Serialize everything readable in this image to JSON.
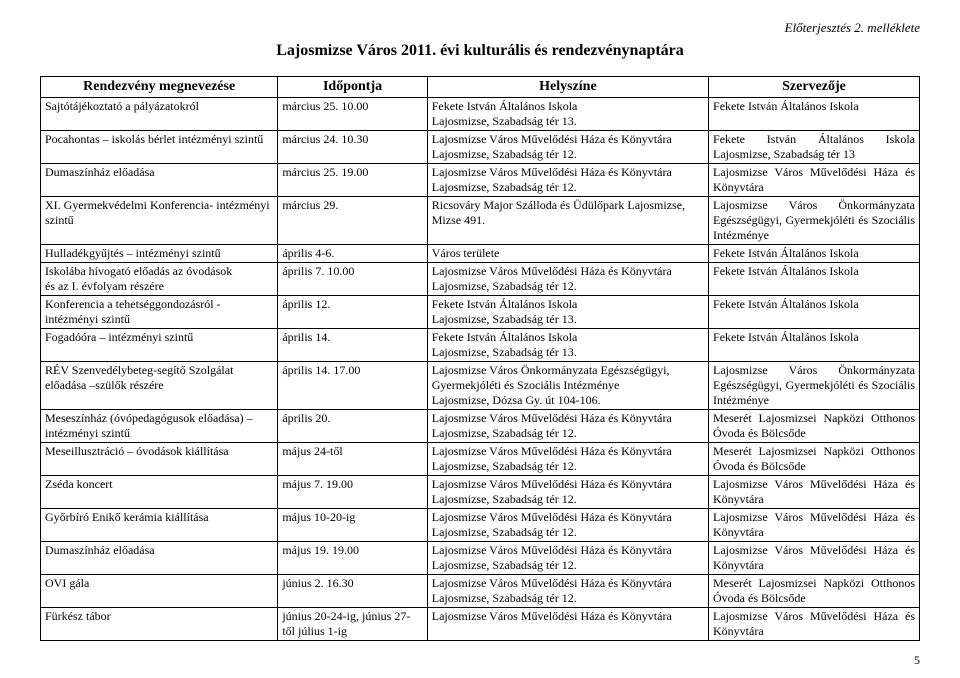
{
  "attachment_note": "Előterjesztés 2. melléklete",
  "title": "Lajosmizse Város 2011. évi kulturális és rendezvénynaptára",
  "page_number": "5",
  "columns": [
    "Rendezvény megnevezése",
    "Időpontja",
    "Helyszíne",
    "Szervezője"
  ],
  "rows": [
    {
      "name": "Sajtótájékoztató a pályázatokról",
      "date": "március 25. 10.00",
      "place": "Fekete István Általános Iskola\nLajosmizse, Szabadság tér 13.",
      "org": "Fekete István Általános Iskola"
    },
    {
      "name": "Pocahontas – iskolás bérlet intézményi szintű",
      "date": "március 24. 10.30",
      "place": "Lajosmizse Város Művelődési Háza és Könyvtára\nLajosmizse, Szabadság tér 12.",
      "org": "Fekete István Általános Iskola Lajosmizse, Szabadság tér 13"
    },
    {
      "name": "Dumaszínház előadása",
      "date": "március 25. 19.00",
      "place": "Lajosmizse Város Művelődési Háza és Könyvtára\nLajosmizse, Szabadság tér 12.",
      "org": "Lajosmizse Város Művelődési Háza és Könyvtára"
    },
    {
      "name": "XI. Gyermekvédelmi Konferencia- intézményi szintű",
      "date": "március 29.",
      "place": "Ricsováry Major Szálloda és Üdülőpark Lajosmizse, Mizse 491.",
      "org": "Lajosmizse Város Önkormányzata Egészségügyi, Gyermekjóléti és Szociális Intézménye"
    },
    {
      "name": "Hulladékgyűjtés – intézményi szintű",
      "date": "április 4-6.",
      "place": "Város területe",
      "org": "Fekete István Általános Iskola"
    },
    {
      "name": "Iskolába hívogató előadás az óvodások\nés az I. évfolyam részére",
      "date": "április 7. 10.00",
      "place": "Lajosmizse Város Művelődési Háza és Könyvtára\nLajosmizse, Szabadság tér 12.",
      "org": "Fekete István Általános Iskola"
    },
    {
      "name": "Konferencia a tehetséggondozásról - intézményi szintű",
      "date": "április 12.",
      "place": "Fekete István Általános Iskola\nLajosmizse, Szabadság tér 13.",
      "org": "Fekete István Általános Iskola"
    },
    {
      "name": "Fogadóóra – intézményi szintű",
      "date": "április 14.",
      "place": "Fekete István Általános Iskola\nLajosmizse, Szabadság tér 13.",
      "org": "Fekete István Általános Iskola"
    },
    {
      "name": "RÉV Szenvedélybeteg-segítő Szolgálat előadása –szülők részére",
      "date": "április 14. 17.00",
      "place": "Lajosmizse Város Önkormányzata Egészségügyi, Gyermekjóléti és Szociális Intézménye\nLajosmizse, Dózsa Gy. út 104-106.",
      "org": "Lajosmizse Város Önkormányzata Egészségügyi, Gyermekjóléti és Szociális Intézménye"
    },
    {
      "name": "Meseszínház (óvópedagógusok előadása) – intézményi szintű",
      "date": "április 20.",
      "place": "Lajosmizse Város Művelődési Háza és Könyvtára\nLajosmizse, Szabadság tér 12.",
      "org": "Meserét Lajosmizsei Napközi Otthonos Óvoda és Bölcsőde"
    },
    {
      "name": "Meseillusztráció – óvodások kiállítása",
      "date": "május 24-től",
      "place": "Lajosmizse Város Művelődési Háza és Könyvtára\nLajosmizse, Szabadság tér 12.",
      "org": "Meserét Lajosmizsei Napközi Otthonos Óvoda és Bölcsőde"
    },
    {
      "name": "Zséda koncert",
      "date": "május 7. 19.00",
      "place": "Lajosmizse Város Művelődési Háza és Könyvtára\nLajosmizse, Szabadság tér 12.",
      "org": "Lajosmizse Város Művelődési Háza és Könyvtára"
    },
    {
      "name": "Győrbíró Enikő kerámia kiállítása",
      "date": "május 10-20-ig",
      "place": "Lajosmizse Város Művelődési Háza és Könyvtára\nLajosmizse, Szabadság tér 12.",
      "org": "Lajosmizse Város Művelődési Háza és Könyvtára"
    },
    {
      "name": "Dumaszínház előadása",
      "date": "május 19. 19.00",
      "place": "Lajosmizse Város Művelődési Háza és Könyvtára\nLajosmizse, Szabadság tér 12.",
      "org": "Lajosmizse Város Művelődési Háza és Könyvtára"
    },
    {
      "name": "OVI gála",
      "date": "június 2. 16.30",
      "place": "Lajosmizse Város Művelődési Háza és Könyvtára\nLajosmizse, Szabadság tér 12.",
      "org": "Meserét Lajosmizsei Napközi Otthonos Óvoda és Bölcsőde"
    },
    {
      "name": "Fürkész tábor",
      "date": "június 20-24-ig, június 27-től július 1-ig",
      "place": "Lajosmizse Város Művelődési Háza és Könyvtára",
      "org": "Lajosmizse Város Művelődési Háza és Könyvtára"
    }
  ]
}
